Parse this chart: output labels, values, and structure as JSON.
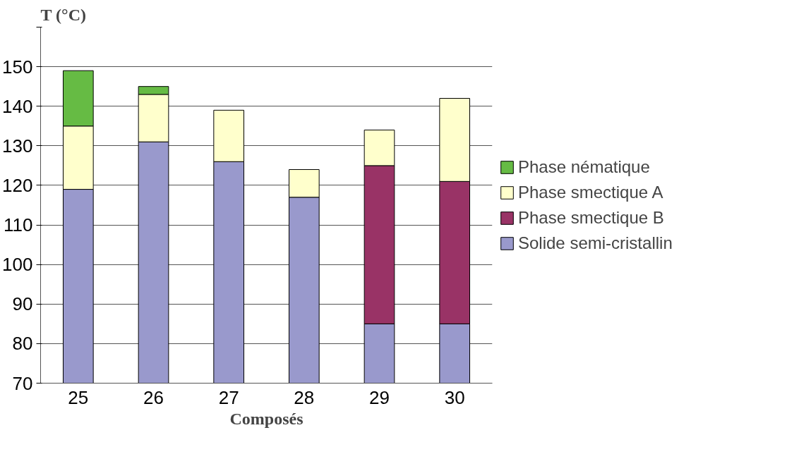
{
  "chart_data": {
    "type": "bar",
    "ylabel": "T (°C)",
    "xlabel": "Composés",
    "categories": [
      "25",
      "26",
      "27",
      "28",
      "29",
      "30"
    ],
    "series": [
      {
        "name": "Solide semi-cristallin",
        "color": "#9999cc",
        "base": [
          70,
          70,
          70,
          70,
          70,
          70
        ],
        "values": [
          49,
          61,
          56,
          47,
          15,
          15
        ]
      },
      {
        "name": "Phase smectique B",
        "color": "#993366",
        "base": [
          null,
          null,
          null,
          null,
          85,
          85
        ],
        "values": [
          null,
          null,
          null,
          null,
          40,
          36
        ]
      },
      {
        "name": "Phase smectique A",
        "color": "#ffffcc",
        "base": [
          119,
          131,
          126,
          117,
          125,
          121
        ],
        "values": [
          16,
          12,
          13,
          7,
          9,
          21
        ]
      },
      {
        "name": "Phase nématique",
        "color": "#66bb44",
        "base": [
          135,
          143,
          null,
          null,
          null,
          null
        ],
        "values": [
          14,
          2,
          null,
          null,
          null,
          null
        ]
      }
    ],
    "ylim": [
      70,
      160
    ],
    "yticks": [
      70,
      80,
      90,
      100,
      110,
      120,
      130,
      140,
      150,
      {
        "value": 160,
        "label": null
      }
    ],
    "grid": "y",
    "legend": "right"
  }
}
